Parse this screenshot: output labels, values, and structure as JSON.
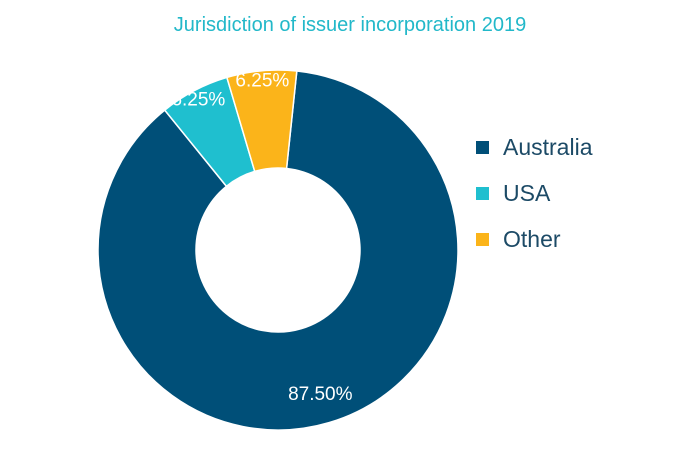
{
  "chart_data": {
    "type": "pie",
    "variant": "donut",
    "title": "Jurisdiction of issuer incorporation 2019",
    "categories": [
      "Australia",
      "USA",
      "Other"
    ],
    "values": [
      87.5,
      6.25,
      6.25
    ],
    "data_labels": [
      "87.50%",
      "6.25%",
      "6.25%"
    ],
    "colors": [
      "#004f78",
      "#1fbfcf",
      "#fbb41a"
    ],
    "legend_position": "right"
  }
}
